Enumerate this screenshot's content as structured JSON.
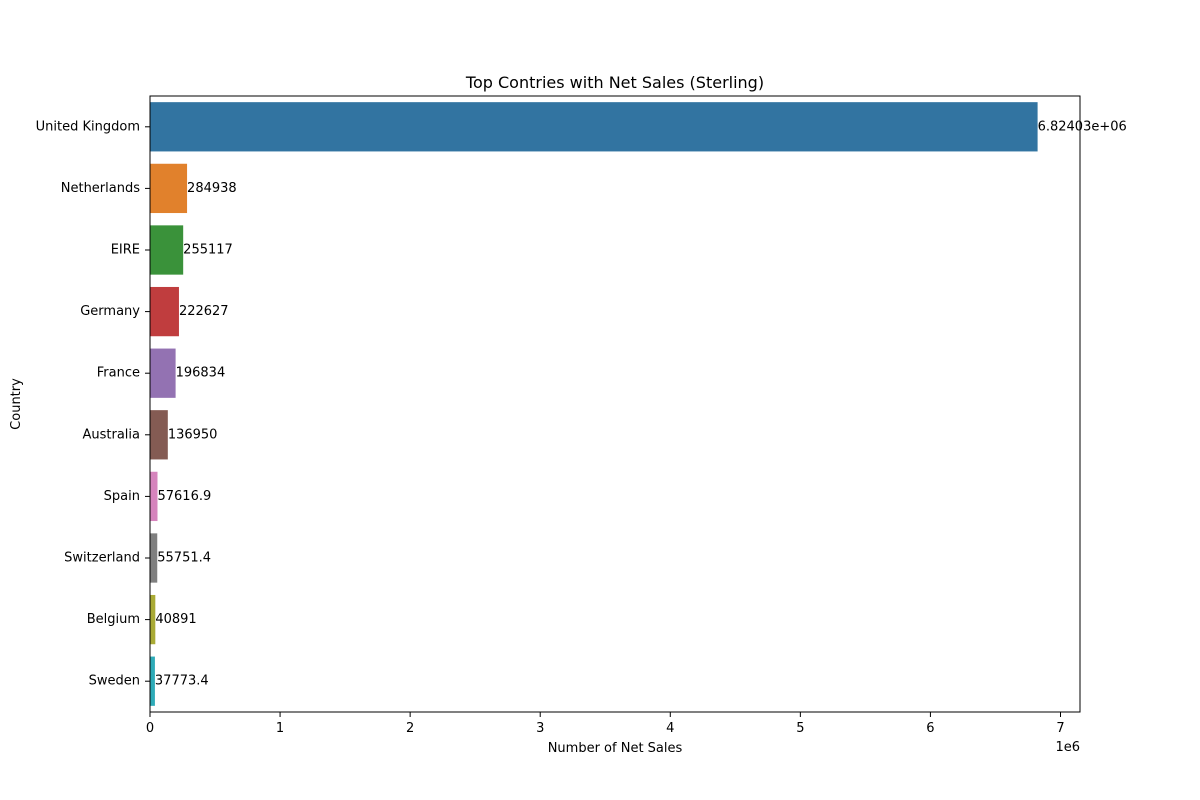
{
  "chart_data": {
    "type": "bar",
    "orientation": "horizontal",
    "title": "Top Contries with Net Sales (Sterling)",
    "xlabel": "Number of Net Sales",
    "ylabel": "Country",
    "x_offset_label": "1e6",
    "xlim": [
      0,
      7150000
    ],
    "xticks": [
      0,
      1,
      2,
      3,
      4,
      5,
      6,
      7
    ],
    "xtick_scale": 1000000,
    "grid": false,
    "categories": [
      "United Kingdom",
      "Netherlands",
      "EIRE",
      "Germany",
      "France",
      "Australia",
      "Spain",
      "Switzerland",
      "Belgium",
      "Sweden"
    ],
    "values": [
      6824030,
      284938,
      255117,
      222627,
      196834,
      136950,
      57616.9,
      55751.4,
      40891,
      37773.4
    ],
    "value_labels": [
      "6.82403e+06",
      "284938",
      "255117",
      "222627",
      "196834",
      "136950",
      "57616.9",
      "55751.4",
      "40891",
      "37773.4"
    ],
    "colors": [
      "#3274a1",
      "#e1812c",
      "#3a923a",
      "#c03d3e",
      "#9372b2",
      "#845b53",
      "#d684bd",
      "#7f7f7f",
      "#a9aa35",
      "#2eabb8"
    ]
  }
}
